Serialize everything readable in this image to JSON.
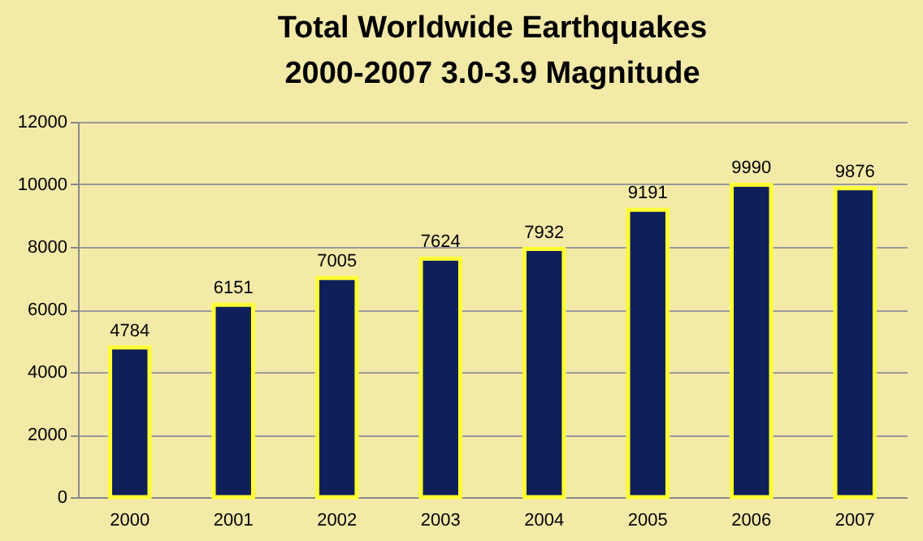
{
  "chart_data": {
    "type": "bar",
    "title": "Total Worldwide Earthquakes\n2000-2007   3.0-3.9 Magnitude",
    "categories": [
      "2000",
      "2001",
      "2002",
      "2003",
      "2004",
      "2005",
      "2006",
      "2007"
    ],
    "values": [
      4784,
      6151,
      7005,
      7624,
      7932,
      9191,
      9990,
      9876
    ],
    "color": "#0f1f5a",
    "ylim": [
      0,
      12000
    ],
    "yticks": [
      0,
      2000,
      4000,
      6000,
      8000,
      10000,
      12000
    ],
    "grid": "y",
    "data_labels": true
  }
}
